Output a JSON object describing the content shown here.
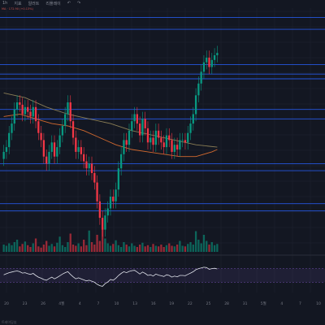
{
  "toolbar": {
    "interval_label": "1h",
    "indicators_label": "지표",
    "alert_label": "알러트",
    "replay_label": "리플레이",
    "undo_glyph": "↶",
    "redo_glyph": "↷"
  },
  "legend": {
    "text": "MA · 172.90 (+0.13%)"
  },
  "footer": {
    "text": "트레이딩뷰"
  },
  "colors": {
    "background": "#131722",
    "grid": "#1e2230",
    "up": "#089981",
    "down": "#f23645",
    "level_line": "#2962ff",
    "ma_slow": "#8a7d55",
    "ma_fast": "#d1692f",
    "rsi_line": "#e0e3eb",
    "rsi_band": "#7e57c2"
  },
  "chart_data": {
    "type": "candlestick",
    "x_ticks": [
      "20",
      "23",
      "26",
      "4월",
      "4",
      "7",
      "10",
      "13",
      "16",
      "19",
      "22",
      "25",
      "28",
      "31",
      "5월",
      "4",
      "7",
      "10"
    ],
    "y_range": [
      0,
      100
    ],
    "grid": true,
    "horizontal_levels": [
      96,
      91,
      76,
      72,
      70,
      57,
      53,
      34,
      31,
      17,
      14
    ],
    "close": [
      39,
      41,
      47,
      51,
      57,
      60,
      59,
      55,
      58,
      56,
      54,
      58,
      52,
      47,
      44,
      37,
      34,
      39,
      43,
      37,
      41,
      46,
      50,
      55,
      60,
      52,
      45,
      39,
      41,
      38,
      35,
      32,
      34,
      30,
      26,
      18,
      11,
      6,
      12,
      15,
      20,
      18,
      23,
      32,
      38,
      44,
      42,
      48,
      52,
      55,
      51,
      46,
      53,
      49,
      43,
      45,
      42,
      48,
      45,
      43,
      41,
      46,
      44,
      39,
      42,
      40,
      44,
      44,
      43,
      47,
      51,
      55,
      63,
      68,
      73,
      77,
      79,
      75,
      78,
      80,
      81
    ],
    "candle_spread": 3,
    "wick_extra": 3,
    "volume": [
      12,
      10,
      14,
      11,
      16,
      20,
      9,
      13,
      17,
      11,
      8,
      14,
      22,
      9,
      7,
      12,
      18,
      10,
      13,
      9,
      15,
      25,
      11,
      8,
      16,
      30,
      12,
      10,
      14,
      9,
      20,
      11,
      35,
      16,
      12,
      28,
      18,
      40,
      22,
      14,
      10,
      13,
      19,
      11,
      8,
      16,
      12,
      9,
      14,
      10,
      8,
      12,
      15,
      9,
      11,
      8,
      13,
      10,
      9,
      12,
      8,
      11,
      14,
      10,
      9,
      12,
      18,
      10,
      9,
      13,
      16,
      12,
      34,
      20,
      14,
      28,
      18,
      12,
      16,
      11,
      13
    ],
    "ma_slow": [
      {
        "i": 0,
        "v": 64
      },
      {
        "i": 8,
        "v": 62
      },
      {
        "i": 16,
        "v": 58
      },
      {
        "i": 24,
        "v": 55
      },
      {
        "i": 32,
        "v": 53
      },
      {
        "i": 40,
        "v": 51
      },
      {
        "i": 48,
        "v": 48
      },
      {
        "i": 56,
        "v": 46
      },
      {
        "i": 64,
        "v": 44
      },
      {
        "i": 72,
        "v": 42
      },
      {
        "i": 80,
        "v": 41
      }
    ],
    "ma_fast": [
      {
        "i": 0,
        "v": 54
      },
      {
        "i": 6,
        "v": 55
      },
      {
        "i": 12,
        "v": 53
      },
      {
        "i": 18,
        "v": 51
      },
      {
        "i": 24,
        "v": 50
      },
      {
        "i": 30,
        "v": 48
      },
      {
        "i": 36,
        "v": 45
      },
      {
        "i": 42,
        "v": 42
      },
      {
        "i": 48,
        "v": 40
      },
      {
        "i": 54,
        "v": 39
      },
      {
        "i": 60,
        "v": 38
      },
      {
        "i": 66,
        "v": 37
      },
      {
        "i": 72,
        "v": 37
      },
      {
        "i": 78,
        "v": 39
      },
      {
        "i": 80,
        "v": 40
      }
    ],
    "rsi": [
      52,
      55,
      58,
      60,
      62,
      63,
      61,
      57,
      58,
      55,
      53,
      56,
      50,
      45,
      42,
      38,
      36,
      41,
      45,
      40,
      44,
      49,
      54,
      58,
      61,
      53,
      46,
      40,
      43,
      40,
      37,
      34,
      36,
      33,
      30,
      24,
      20,
      18,
      26,
      31,
      38,
      36,
      42,
      50,
      56,
      61,
      58,
      62,
      64,
      65,
      60,
      54,
      60,
      56,
      50,
      52,
      48,
      54,
      51,
      49,
      47,
      52,
      50,
      45,
      48,
      46,
      50,
      50,
      49,
      53,
      57,
      61,
      67,
      70,
      72,
      74,
      73,
      68,
      70,
      71,
      69
    ],
    "rsi_range": [
      0,
      100
    ],
    "rsi_bands": [
      70,
      30
    ]
  }
}
